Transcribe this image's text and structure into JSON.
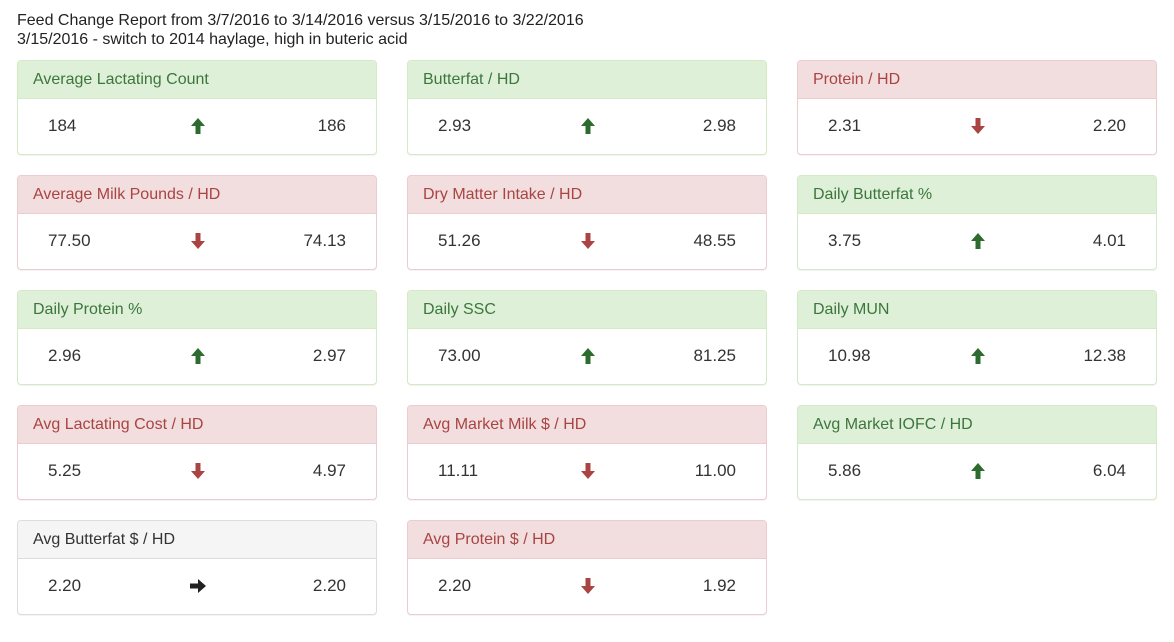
{
  "header": {
    "title": "Feed Change Report from 3/7/2016 to 3/14/2016 versus 3/15/2016 to 3/22/2016",
    "note": "3/15/2016 - switch to 2014 haylage, high in buteric acid"
  },
  "colors": {
    "up": "#2e6b2e",
    "down": "#a94442",
    "flat": "#222222"
  },
  "panels": [
    {
      "title": "Average Lactating Count",
      "before": "184",
      "after": "186",
      "trend": "up",
      "status": "good"
    },
    {
      "title": "Butterfat / HD",
      "before": "2.93",
      "after": "2.98",
      "trend": "up",
      "status": "good"
    },
    {
      "title": "Protein / HD",
      "before": "2.31",
      "after": "2.20",
      "trend": "down",
      "status": "bad"
    },
    {
      "title": "Average Milk Pounds / HD",
      "before": "77.50",
      "after": "74.13",
      "trend": "down",
      "status": "bad"
    },
    {
      "title": "Dry Matter Intake / HD",
      "before": "51.26",
      "after": "48.55",
      "trend": "down",
      "status": "bad"
    },
    {
      "title": "Daily Butterfat %",
      "before": "3.75",
      "after": "4.01",
      "trend": "up",
      "status": "good"
    },
    {
      "title": "Daily Protein %",
      "before": "2.96",
      "after": "2.97",
      "trend": "up",
      "status": "good"
    },
    {
      "title": "Daily SSC",
      "before": "73.00",
      "after": "81.25",
      "trend": "up",
      "status": "good"
    },
    {
      "title": "Daily MUN",
      "before": "10.98",
      "after": "12.38",
      "trend": "up",
      "status": "good"
    },
    {
      "title": "Avg Lactating Cost / HD",
      "before": "5.25",
      "after": "4.97",
      "trend": "down",
      "status": "bad"
    },
    {
      "title": "Avg Market Milk $ / HD",
      "before": "11.11",
      "after": "11.00",
      "trend": "down",
      "status": "bad"
    },
    {
      "title": "Avg Market IOFC / HD",
      "before": "5.86",
      "after": "6.04",
      "trend": "up",
      "status": "good"
    },
    {
      "title": "Avg Butterfat $ / HD",
      "before": "2.20",
      "after": "2.20",
      "trend": "flat",
      "status": "neutral"
    },
    {
      "title": "Avg Protein $ / HD",
      "before": "2.20",
      "after": "1.92",
      "trend": "down",
      "status": "bad"
    }
  ]
}
